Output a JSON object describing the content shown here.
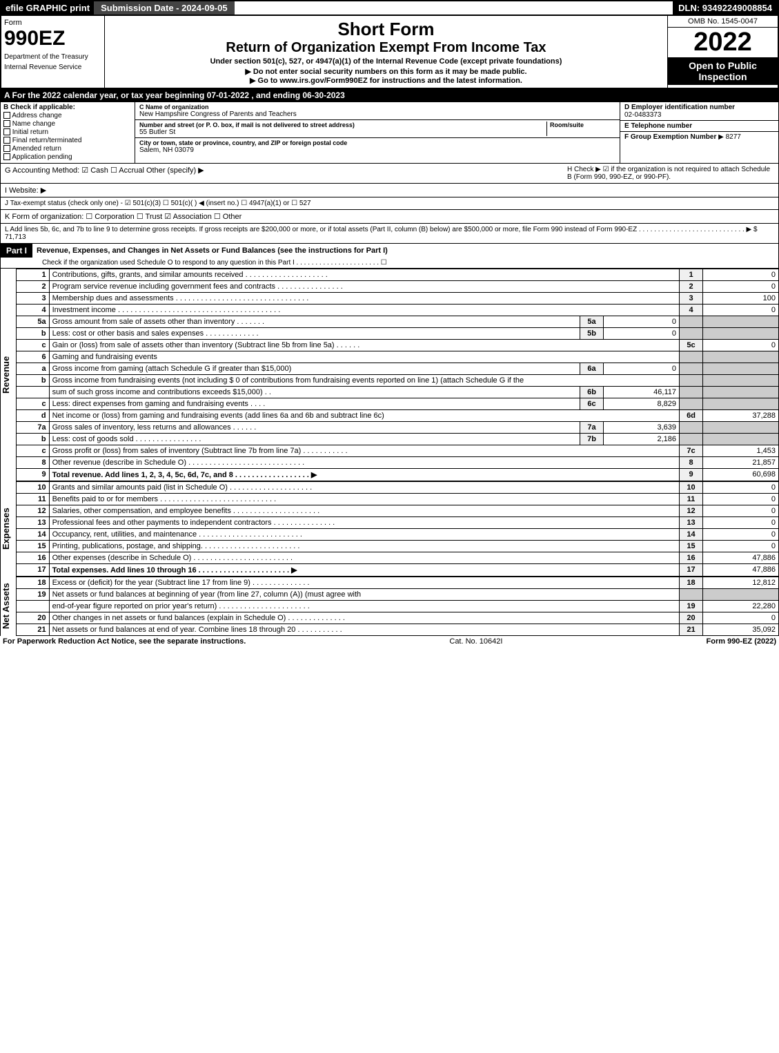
{
  "header": {
    "efile": "efile GRAPHIC print",
    "submission": "Submission Date - 2024-09-05",
    "dln": "DLN: 93492249008854"
  },
  "title": {
    "form": "Form",
    "number": "990EZ",
    "dept": "Department of the Treasury",
    "irs": "Internal Revenue Service",
    "short": "Short Form",
    "main": "Return of Organization Exempt From Income Tax",
    "under": "Under section 501(c), 527, or 4947(a)(1) of the Internal Revenue Code (except private foundations)",
    "nossn": "▶ Do not enter social security numbers on this form as it may be made public.",
    "goto": "▶ Go to www.irs.gov/Form990EZ for instructions and the latest information.",
    "omb": "OMB No. 1545-0047",
    "year": "2022",
    "open": "Open to Public Inspection"
  },
  "A": "A  For the 2022 calendar year, or tax year beginning 07-01-2022 , and ending 06-30-2023",
  "B": {
    "title": "B  Check if applicable:",
    "items": [
      "Address change",
      "Name change",
      "Initial return",
      "Final return/terminated",
      "Amended return",
      "Application pending"
    ]
  },
  "C": {
    "name_lbl": "C Name of organization",
    "name": "New Hampshire Congress of Parents and Teachers",
    "addr_lbl": "Number and street (or P. O. box, if mail is not delivered to street address)",
    "addr": "55 Butler St",
    "room_lbl": "Room/suite",
    "city_lbl": "City or town, state or province, country, and ZIP or foreign postal code",
    "city": "Salem, NH  03079"
  },
  "D": {
    "ein_lbl": "D Employer identification number",
    "ein": "02-0483373",
    "tel_lbl": "E Telephone number",
    "grp_lbl": "F Group Exemption Number",
    "grp": "▶ 8277"
  },
  "G": "G Accounting Method:   ☑ Cash  ☐ Accrual  Other (specify) ▶",
  "H": "H   Check ▶ ☑ if the organization is not required to attach Schedule B (Form 990, 990-EZ, or 990-PF).",
  "I": "I Website: ▶",
  "J": "J Tax-exempt status (check only one) - ☑ 501(c)(3) ☐ 501(c)(  ) ◀ (insert no.) ☐ 4947(a)(1) or ☐ 527",
  "K": "K Form of organization:  ☐ Corporation  ☐ Trust  ☑ Association  ☐ Other",
  "L": "L Add lines 5b, 6c, and 7b to line 9 to determine gross receipts. If gross receipts are $200,000 or more, or if total assets (Part II, column (B) below) are $500,000 or more, file Form 990 instead of Form 990-EZ . . . . . . . . . . . . . . . . . . . . . . . . . . . . ▶ $ 71,713",
  "part1": {
    "label": "Part I",
    "title": "Revenue, Expenses, and Changes in Net Assets or Fund Balances (see the instructions for Part I)",
    "check": "Check if the organization used Schedule O to respond to any question in this Part I . . . . . . . . . . . . . . . . . . . . . . ☐"
  },
  "sections": {
    "revenue": "Revenue",
    "expenses": "Expenses",
    "netassets": "Net Assets"
  },
  "lines": {
    "1": {
      "n": "1",
      "d": "Contributions, gifts, grants, and similar amounts received . . . . . . . . . . . . . . . . . . . .",
      "b": "1",
      "v": "0"
    },
    "2": {
      "n": "2",
      "d": "Program service revenue including government fees and contracts . . . . . . . . . . . . . . . .",
      "b": "2",
      "v": "0"
    },
    "3": {
      "n": "3",
      "d": "Membership dues and assessments . . . . . . . . . . . . . . . . . . . . . . . . . . . . . . . .",
      "b": "3",
      "v": "100"
    },
    "4": {
      "n": "4",
      "d": "Investment income . . . . . . . . . . . . . . . . . . . . . . . . . . . . . . . . . . . . . . .",
      "b": "4",
      "v": "0"
    },
    "5a": {
      "n": "5a",
      "d": "Gross amount from sale of assets other than inventory . . . . . . .",
      "ib": "5a",
      "iv": "0"
    },
    "5b": {
      "n": "b",
      "d": "Less: cost or other basis and sales expenses . . . . . . . . . . . . .",
      "ib": "5b",
      "iv": "0"
    },
    "5c": {
      "n": "c",
      "d": "Gain or (loss) from sale of assets other than inventory (Subtract line 5b from line 5a) . . . . . .",
      "b": "5c",
      "v": "0"
    },
    "6": {
      "n": "6",
      "d": "Gaming and fundraising events"
    },
    "6a": {
      "n": "a",
      "d": "Gross income from gaming (attach Schedule G if greater than $15,000)",
      "ib": "6a",
      "iv": "0"
    },
    "6b1": {
      "n": "b",
      "d": "Gross income from fundraising events (not including $  0           of contributions from fundraising events reported on line 1) (attach Schedule G if the"
    },
    "6b2": {
      "d": "sum of such gross income and contributions exceeds $15,000)   . .",
      "ib": "6b",
      "iv": "46,117"
    },
    "6c": {
      "n": "c",
      "d": "Less: direct expenses from gaming and fundraising events   . . . .",
      "ib": "6c",
      "iv": "8,829"
    },
    "6d": {
      "n": "d",
      "d": "Net income or (loss) from gaming and fundraising events (add lines 6a and 6b and subtract line 6c)",
      "b": "6d",
      "v": "37,288"
    },
    "7a": {
      "n": "7a",
      "d": "Gross sales of inventory, less returns and allowances . . . . . .",
      "ib": "7a",
      "iv": "3,639"
    },
    "7b": {
      "n": "b",
      "d": "Less: cost of goods sold      . . . . . . . . . . . . . . . .",
      "ib": "7b",
      "iv": "2,186"
    },
    "7c": {
      "n": "c",
      "d": "Gross profit or (loss) from sales of inventory (Subtract line 7b from line 7a) . . . . . . . . . . .",
      "b": "7c",
      "v": "1,453"
    },
    "8": {
      "n": "8",
      "d": "Other revenue (describe in Schedule O) . . . . . . . . . . . . . . . . . . . . . . . . . . . .",
      "b": "8",
      "v": "21,857"
    },
    "9": {
      "n": "9",
      "d": "Total revenue. Add lines 1, 2, 3, 4, 5c, 6d, 7c, and 8  . . . . . . . . . . . . . . . . . .  ▶",
      "b": "9",
      "v": "60,698",
      "bold": true
    },
    "10": {
      "n": "10",
      "d": "Grants and similar amounts paid (list in Schedule O) . . . . . . . . . . . . . . . . . . . .",
      "b": "10",
      "v": "0"
    },
    "11": {
      "n": "11",
      "d": "Benefits paid to or for members   . . . . . . . . . . . . . . . . . . . . . . . . . . . .",
      "b": "11",
      "v": "0"
    },
    "12": {
      "n": "12",
      "d": "Salaries, other compensation, and employee benefits . . . . . . . . . . . . . . . . . . . . .",
      "b": "12",
      "v": "0"
    },
    "13": {
      "n": "13",
      "d": "Professional fees and other payments to independent contractors . . . . . . . . . . . . . . .",
      "b": "13",
      "v": "0"
    },
    "14": {
      "n": "14",
      "d": "Occupancy, rent, utilities, and maintenance . . . . . . . . . . . . . . . . . . . . . . . . .",
      "b": "14",
      "v": "0"
    },
    "15": {
      "n": "15",
      "d": "Printing, publications, postage, and shipping. . . . . . . . . . . . . . . . . . . . . . . .",
      "b": "15",
      "v": "0"
    },
    "16": {
      "n": "16",
      "d": "Other expenses (describe in Schedule O)   . . . . . . . . . . . . . . . . . . . . . . . .",
      "b": "16",
      "v": "47,886"
    },
    "17": {
      "n": "17",
      "d": "Total expenses. Add lines 10 through 16   . . . . . . . . . . . . . . . . . . . . . .  ▶",
      "b": "17",
      "v": "47,886",
      "bold": true
    },
    "18": {
      "n": "18",
      "d": "Excess or (deficit) for the year (Subtract line 17 from line 9)     . . . . . . . . . . . . . .",
      "b": "18",
      "v": "12,812"
    },
    "19a": {
      "n": "19",
      "d": "Net assets or fund balances at beginning of year (from line 27, column (A)) (must agree with"
    },
    "19b": {
      "d": "end-of-year figure reported on prior year's return) . . . . . . . . . . . . . . . . . . . . . .",
      "b": "19",
      "v": "22,280"
    },
    "20": {
      "n": "20",
      "d": "Other changes in net assets or fund balances (explain in Schedule O) . . . . . . . . . . . . . .",
      "b": "20",
      "v": "0"
    },
    "21": {
      "n": "21",
      "d": "Net assets or fund balances at end of year. Combine lines 18 through 20 . . . . . . . . . . .",
      "b": "21",
      "v": "35,092"
    }
  },
  "footer": {
    "left": "For Paperwork Reduction Act Notice, see the separate instructions.",
    "center": "Cat. No. 10642I",
    "right": "Form 990-EZ (2022)"
  }
}
